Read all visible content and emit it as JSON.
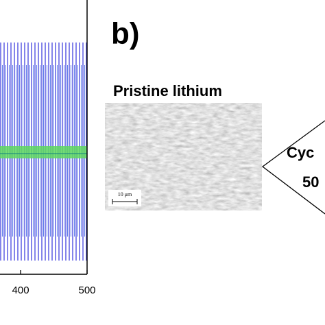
{
  "chart_data": {
    "type": "line",
    "xlim": [
      369,
      500
    ],
    "xticks": [
      400,
      500
    ]
  },
  "panel_b": {
    "label": "b)",
    "image_title": "Pristine lithium",
    "scale_bar": "10 μm",
    "arrow_text": [
      "Cyc",
      "50"
    ]
  }
}
